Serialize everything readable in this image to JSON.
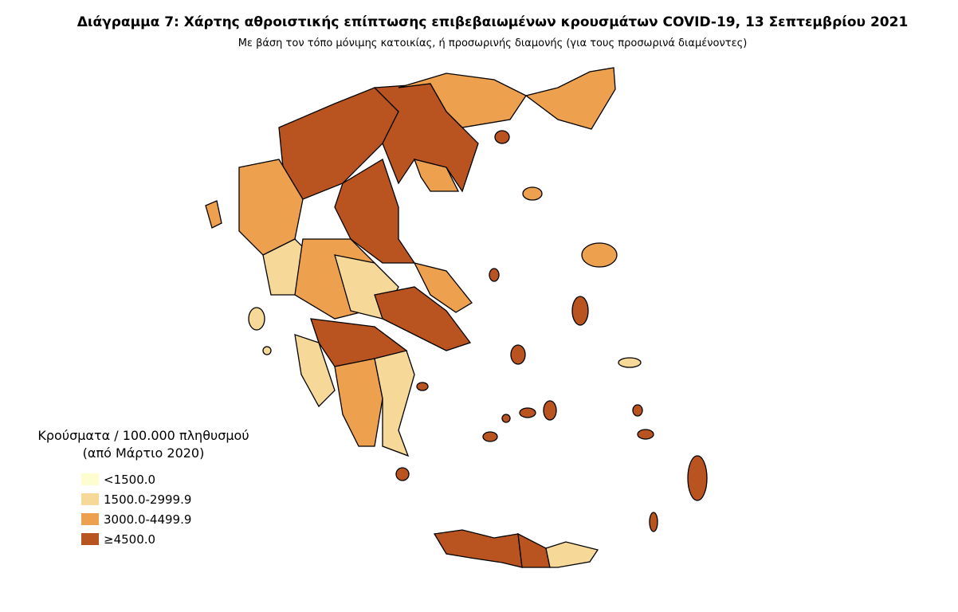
{
  "title": "Διάγραμμα 7: Χάρτης αθροιστικής επίπτωσης επιβεβαιωμένων κρουσμάτων COVID-19, 13 Σεπτεμβρίου 2021",
  "subtitle": "Με βάση τον τόπο μόνιμης κατοικίας, ή προσωρινής διαμονής (για τους προσωρινά διαμένοντες)",
  "legend": {
    "title_lines": [
      "Κρούσματα / 100.000 πληθυσμού",
      "(από Μάρτιο 2020)"
    ],
    "items": [
      {
        "label": "<1500.0",
        "color": "#fefdcf"
      },
      {
        "label": "1500.0-2999.9",
        "color": "#f6d898"
      },
      {
        "label": "3000.0-4499.9",
        "color": "#eda04d"
      },
      {
        "label": "≥4500.0",
        "color": "#b9531f"
      }
    ]
  }
}
